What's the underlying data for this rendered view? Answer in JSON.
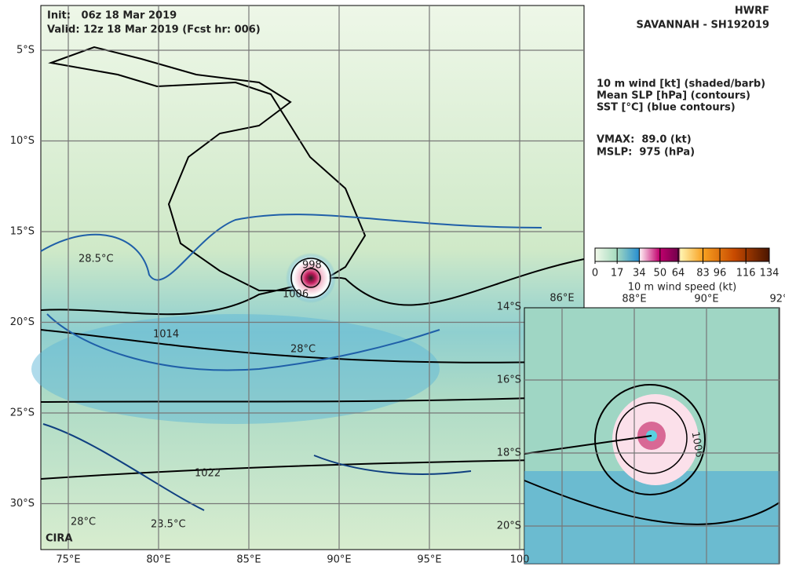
{
  "header": {
    "init": "Init:   06z 18 Mar 2019",
    "valid": "Valid: 12z 18 Mar 2019 (Fcst hr: 006)",
    "model": "HWRF",
    "storm": "SAVANNAH - SH192019"
  },
  "legend": {
    "lines": [
      "10 m wind [kt] (shaded/barb)",
      "Mean SLP [hPa] (contours)",
      "SST [°C] (blue contours)"
    ],
    "vmax": "VMAX:  89.0 (kt)",
    "mslp": "MSLP:  975 (hPa)"
  },
  "colorbar": {
    "label": "10 m wind speed (kt)",
    "range": [
      0,
      134
    ],
    "ticks": [
      0,
      17,
      34,
      50,
      64,
      83,
      96,
      116,
      134
    ]
  },
  "map": {
    "lat_ticks": [
      {
        "value": -5,
        "label": "5°S"
      },
      {
        "value": -10,
        "label": "10°S"
      },
      {
        "value": -15,
        "label": "15°S"
      },
      {
        "value": -20,
        "label": "20°S"
      },
      {
        "value": -25,
        "label": "25°S"
      },
      {
        "value": -30,
        "label": "30°S"
      }
    ],
    "lon_ticks": [
      {
        "value": 75,
        "label": "75°E"
      },
      {
        "value": 80,
        "label": "80°E"
      },
      {
        "value": 85,
        "label": "85°E"
      },
      {
        "value": 90,
        "label": "90°E"
      },
      {
        "value": 95,
        "label": "95°E"
      },
      {
        "value": 100,
        "label": "100"
      }
    ],
    "contour_labels": [
      "1014",
      "1022",
      "1006",
      "998",
      "28.5°C",
      "28°C",
      "28°C",
      "23.5°C"
    ]
  },
  "inset": {
    "lat_ticks": [
      {
        "value": -14,
        "label": "14°S"
      },
      {
        "value": -16,
        "label": "16°S"
      },
      {
        "value": -18,
        "label": "18°S"
      },
      {
        "value": -20,
        "label": "20°S"
      }
    ],
    "lon_ticks": [
      {
        "value": 86,
        "label": "86°E"
      },
      {
        "value": 88,
        "label": "88°E"
      },
      {
        "value": 90,
        "label": "90°E"
      },
      {
        "value": 92,
        "label": "92°"
      }
    ],
    "contour_labels": [
      "1006"
    ]
  },
  "logo": "CIRA"
}
